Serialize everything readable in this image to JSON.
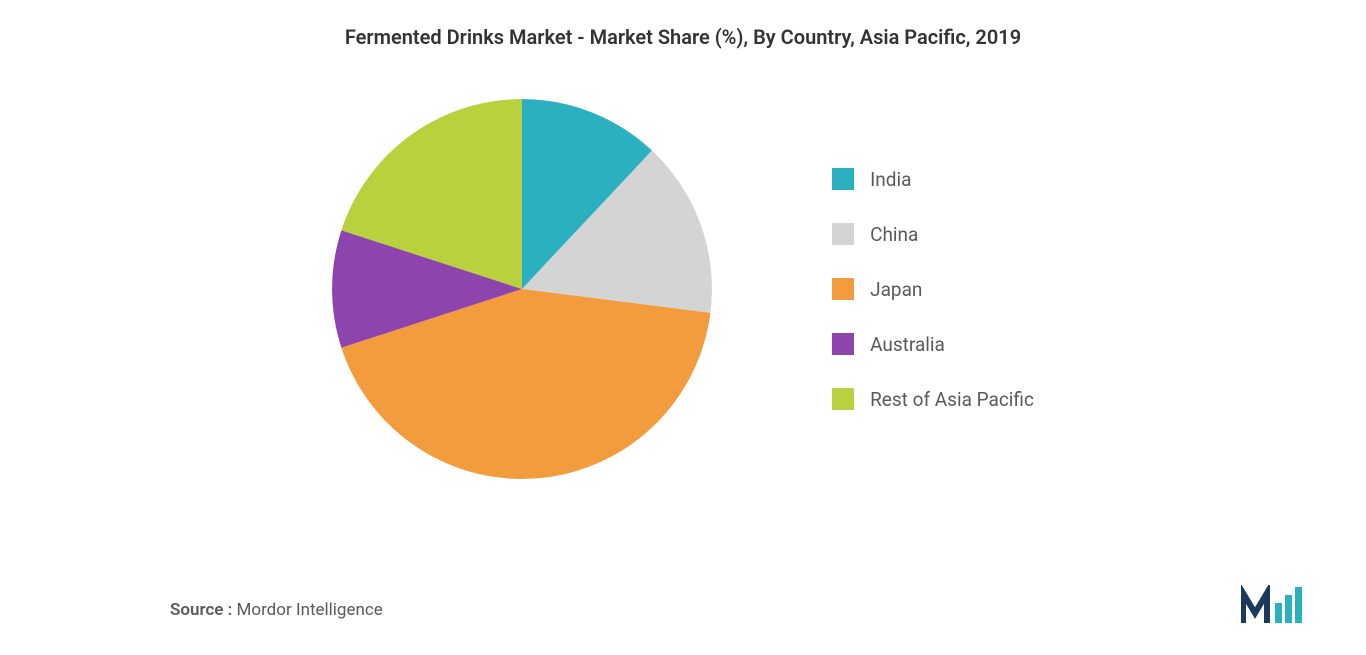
{
  "chart": {
    "type": "pie",
    "title": "Fermented Drinks Market - Market Share (%), By Country, Asia Pacific, 2019",
    "title_fontsize": 20,
    "title_color": "#333333",
    "background_color": "#ffffff",
    "pie_radius": 190,
    "slices": [
      {
        "label": "India",
        "value": 12,
        "color": "#2bb0bf"
      },
      {
        "label": "China",
        "value": 15,
        "color": "#d4d4d4"
      },
      {
        "label": "Japan",
        "value": 43,
        "color": "#f39c3d"
      },
      {
        "label": "Australia",
        "value": 10,
        "color": "#8e44ad"
      },
      {
        "label": "Rest of Asia Pacific",
        "value": 20,
        "color": "#b8d13c"
      }
    ],
    "legend": {
      "fontsize": 19,
      "text_color": "#5a5a5a",
      "swatch_size": 22
    }
  },
  "source": {
    "label": "Source :",
    "text": "Mordor Intelligence",
    "fontsize": 17,
    "color": "#5a5a5a"
  },
  "logo": {
    "colors": [
      "#1a3a5c",
      "#2bb0bf"
    ]
  }
}
